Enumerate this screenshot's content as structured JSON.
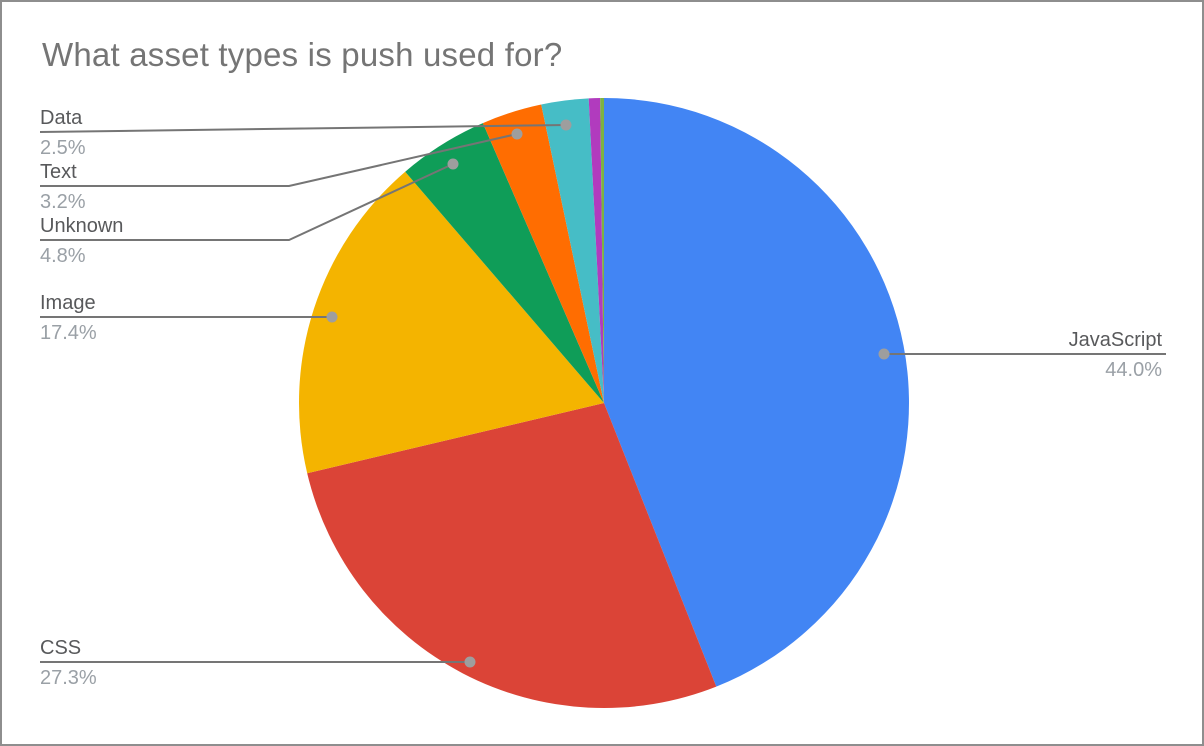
{
  "chart_data": {
    "type": "pie",
    "title": "What asset types is push used for?",
    "direction": "clockwise",
    "start_angle_deg": 0,
    "legend": "none",
    "label_style": "outside-with-leader-lines",
    "leader_line_color": "#757575",
    "leader_dot_color": "#9e9e9e",
    "title_color": "#757575",
    "label_name_color": "#58595b",
    "label_pct_color": "#9aa0a6",
    "slices": [
      {
        "label": "JavaScript",
        "value": 44.0,
        "pct_label": "44.0%",
        "color": "#4285F4"
      },
      {
        "label": "CSS",
        "value": 27.3,
        "pct_label": "27.3%",
        "color": "#DB4437"
      },
      {
        "label": "Image",
        "value": 17.4,
        "pct_label": "17.4%",
        "color": "#F4B400"
      },
      {
        "label": "Unknown",
        "value": 4.8,
        "pct_label": "4.8%",
        "color": "#0F9D58"
      },
      {
        "label": "Text",
        "value": 3.2,
        "pct_label": "3.2%",
        "color": "#FF6D01"
      },
      {
        "label": "Data",
        "value": 2.5,
        "pct_label": "2.5%",
        "color": "#46BDC6"
      },
      {
        "label": "",
        "value": 0.6,
        "pct_label": "",
        "color": "#B13BBE"
      },
      {
        "label": "",
        "value": 0.2,
        "pct_label": "",
        "color": "#7CB342"
      }
    ]
  }
}
